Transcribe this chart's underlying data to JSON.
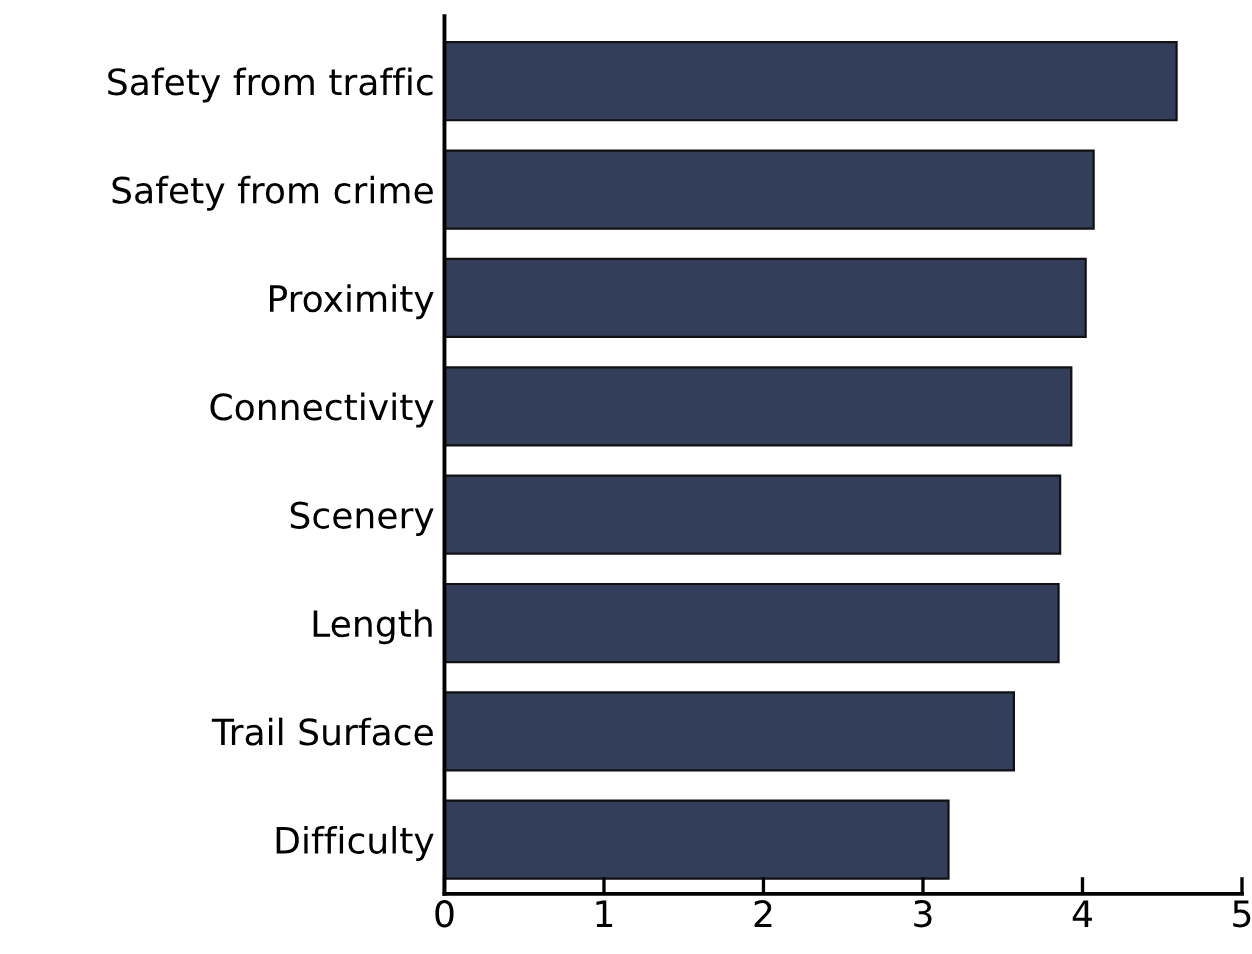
{
  "chart_data": {
    "type": "bar",
    "orientation": "horizontal",
    "categories": [
      "Safety from traffic",
      "Safety from crime",
      "Proximity",
      "Connectivity",
      "Scenery",
      "Length",
      "Trail Surface",
      "Difficulty"
    ],
    "values": [
      4.59,
      4.07,
      4.02,
      3.93,
      3.86,
      3.85,
      3.57,
      3.16
    ],
    "color": "#333f5a",
    "xlim": [
      0,
      5
    ],
    "xticks": [
      0,
      1,
      2,
      3,
      4,
      5
    ],
    "grid": false,
    "legend": false
  }
}
